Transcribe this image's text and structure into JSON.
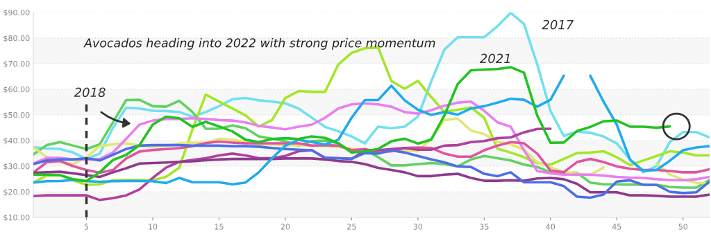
{
  "chart_data": {
    "type": "line",
    "title": "Avocados heading into 2022 with strong price momentum",
    "x": [
      1,
      2,
      3,
      4,
      5,
      6,
      7,
      8,
      9,
      10,
      11,
      12,
      13,
      14,
      15,
      16,
      17,
      18,
      19,
      20,
      21,
      22,
      23,
      24,
      25,
      26,
      27,
      28,
      29,
      30,
      31,
      32,
      33,
      34,
      35,
      36,
      37,
      38,
      39,
      40,
      41,
      42,
      43,
      44,
      45,
      46,
      47,
      48,
      49,
      50,
      51,
      52
    ],
    "series": [
      {
        "color": "#72e0ee",
        "values": [
          37.4,
          36.9,
          36.7,
          35.3,
          32.8,
          34.9,
          45,
          52.8,
          52.5,
          51.6,
          51.5,
          51.1,
          49.3,
          51.1,
          53.4,
          56.1,
          56.6,
          55.7,
          55.2,
          54.5,
          52.5,
          48.9,
          45.3,
          43.6,
          41.6,
          38.9,
          45.4,
          44.8,
          45.4,
          49.3,
          63,
          75.5,
          80.3,
          80.3,
          80.3,
          84.6,
          89.8,
          85.5,
          69.7,
          51.6,
          41.8,
          43.5,
          43,
          41.6,
          38.9,
          32.6,
          27.6,
          30,
          39.4,
          43.3,
          43.3,
          41.2
        ]
      },
      {
        "color": "#a5e62a",
        "values": [
          23.6,
          26.3,
          26.5,
          24.5,
          22.7,
          22.9,
          24.5,
          24.6,
          24.6,
          24.5,
          25.8,
          29.4,
          44.4,
          57.9,
          55.2,
          52.5,
          49.8,
          45.4,
          48,
          56.6,
          59.3,
          59,
          59,
          69.7,
          74.2,
          76,
          76.3,
          63.2,
          60.2,
          63.3,
          57,
          51.1,
          52,
          52.9,
          48.9,
          36.8,
          35.3,
          33.5,
          31.2,
          30.6,
          32.8,
          35.1,
          35.3,
          35.8,
          33.5,
          30.4,
          32.2,
          34,
          35.8,
          35.3,
          34.2,
          34.2
        ]
      },
      {
        "color": "#62d262",
        "values": [
          34.6,
          38.2,
          39.4,
          38,
          36.7,
          38.5,
          47.1,
          55.8,
          55.9,
          53.4,
          53.2,
          55.5,
          51.1,
          44.6,
          44.6,
          45.9,
          44.8,
          41.6,
          40.7,
          39.7,
          38,
          39.8,
          40,
          38.9,
          35.8,
          36.4,
          33.5,
          30.3,
          30.3,
          30.8,
          31.2,
          30.8,
          29.9,
          32.6,
          34,
          33.1,
          32.2,
          30.6,
          29.7,
          27.6,
          27.4,
          27.4,
          23.6,
          22.9,
          22.9,
          22.8,
          22.8,
          22.7,
          21.9,
          21.6,
          21.6,
          24.6
        ]
      },
      {
        "color": "#dfe870",
        "values": [
          37.4,
          33.5,
          31.7,
          30.8,
          33.5,
          37.8,
          38.5,
          38.9,
          38,
          37.6,
          38,
          38.8,
          39.1,
          39.1,
          40.7,
          40.3,
          39.4,
          38.5,
          38.5,
          38.2,
          38.2,
          38,
          37.8,
          37.6,
          36.7,
          36.4,
          36.2,
          36.4,
          36.2,
          35.8,
          40.7,
          48,
          48.6,
          43.9,
          42.5,
          39.5,
          38.5,
          36.5,
          31.5,
          29.5,
          27.8,
          27,
          26.5,
          29.5,
          null,
          null,
          null,
          31,
          26.8,
          24.7,
          23.5,
          23.2
        ]
      },
      {
        "color": "#ea7ff0",
        "values": [
          31,
          33.2,
          33.2,
          32.6,
          32.6,
          32.8,
          35.3,
          40.7,
          46.2,
          47.8,
          48.4,
          48.4,
          48.7,
          48.4,
          48,
          47.8,
          47.1,
          45.7,
          45.1,
          44.4,
          45.4,
          46.2,
          48.9,
          52.5,
          54.1,
          54.5,
          54.1,
          53.2,
          51.1,
          50.5,
          51.8,
          53.6,
          54.8,
          55.2,
          51.6,
          47.1,
          45.4,
          36.2,
          28.1,
          27.2,
          26.7,
          26.7,
          26.7,
          26.3,
          25.8,
          25.5,
          25.4,
          24.9,
          24.6,
          24.5,
          24.9,
          25.8
        ]
      },
      {
        "color": "#e0559f",
        "values": [
          27.5,
          31.5,
          32,
          30,
          28.5,
          27.4,
          28.5,
          33,
          35.7,
          36.3,
          36.7,
          37,
          37.8,
          39,
          39.6,
          39.2,
          38.9,
          38.9,
          38.9,
          38.9,
          38.9,
          38,
          38.2,
          38,
          36.2,
          36.7,
          35.3,
          35.8,
          37.1,
          37.3,
          37.1,
          34.9,
          33.7,
          33.7,
          36.2,
          38,
          39.4,
          38.9,
          34.9,
          28.3,
          27.6,
          31.6,
          32.8,
          31.6,
          29.9,
          29,
          28.5,
          28.5,
          28.1,
          27.6,
          27.6,
          28.8
        ]
      },
      {
        "color": "#b0409f",
        "values": [
          18.3,
          18.6,
          18.6,
          18.6,
          18.6,
          16.8,
          17.5,
          18.6,
          20.9,
          25.4,
          29.4,
          31.7,
          32.4,
          33.1,
          34.2,
          34.9,
          34.2,
          33.1,
          33.1,
          34,
          35.8,
          36.2,
          33.1,
          33.1,
          32.8,
          36.2,
          36.2,
          36.7,
          37.1,
          36.4,
          36.4,
          38,
          38.2,
          39.4,
          39.8,
          40.9,
          41.2,
          43.2,
          44.5,
          44.6,
          null,
          null,
          null,
          null,
          null,
          null,
          null,
          null,
          null,
          null,
          null,
          null
        ]
      },
      {
        "color": "#8e3a8e",
        "values": [
          27.4,
          27.6,
          27.8,
          27.2,
          26.5,
          25.8,
          27.6,
          29.2,
          31,
          31.2,
          31.4,
          31.7,
          31.9,
          32.3,
          32.6,
          32.8,
          32.8,
          32.8,
          32.8,
          33,
          33,
          33,
          32.6,
          32,
          31.7,
          30.8,
          29.3,
          28.5,
          27.6,
          26.1,
          26.1,
          26.7,
          27,
          25.4,
          24.3,
          24.3,
          24.5,
          24.3,
          25.2,
          25.4,
          24.9,
          23.1,
          19.8,
          19.8,
          19.8,
          18.6,
          18.6,
          18.4,
          18.1,
          18.1,
          18.1,
          18.9
        ]
      },
      {
        "color": "#4c6fe6",
        "values": [
          30.8,
          32.2,
          32.6,
          32.6,
          33.1,
          32.2,
          34.4,
          36.7,
          38,
          38.2,
          38.2,
          38.2,
          38,
          38,
          38,
          37.8,
          37.8,
          37.6,
          37.1,
          36.7,
          36.4,
          36.2,
          33.3,
          33.1,
          32.9,
          35.1,
          34.9,
          36.2,
          35.3,
          34,
          32.6,
          31.5,
          29.9,
          29.7,
          27,
          26.1,
          27.6,
          23.7,
          23.7,
          23.7,
          22.2,
          18.1,
          17.7,
          18.9,
          24,
          24.5,
          22.7,
          22.7,
          20,
          19.5,
          19.8,
          24
        ]
      },
      {
        "color": "#22aaee",
        "values": [
          23.6,
          24.1,
          24.2,
          24.6,
          24.1,
          23.9,
          24.1,
          24.2,
          24.2,
          24.1,
          23.4,
          25.4,
          23.7,
          23.7,
          23.7,
          22.9,
          23.6,
          27.6,
          33.1,
          38,
          40.3,
          39.4,
          38.5,
          40.3,
          48.9,
          55.8,
          55.8,
          61.4,
          55.7,
          52,
          50,
          51.1,
          50.1,
          52.5,
          53.4,
          54.8,
          56.3,
          55.9,
          53.2,
          55.9,
          65.3,
          null,
          65.3,
          55.2,
          46.2,
          32.5,
          28.2,
          28.5,
          32.1,
          36.2,
          37.3,
          37.8
        ]
      },
      {
        "color": "#22c322",
        "values": [
          26.7,
          26.7,
          26.5,
          24.9,
          24.2,
          27.6,
          32.4,
          34.4,
          38.2,
          46.2,
          49.3,
          48.7,
          45.3,
          47.3,
          45.5,
          43.6,
          40.3,
          39.4,
          40.6,
          40.9,
          40.6,
          41.6,
          41,
          38.9,
          35.3,
          35.8,
          36.7,
          39.7,
          40.7,
          38.8,
          40.3,
          49.8,
          62,
          67.4,
          67.7,
          67.9,
          68.6,
          66.5,
          49.8,
          39.1,
          39.2,
          43.7,
          45.3,
          47.5,
          47.8,
          45.4,
          45.4,
          45,
          45.5,
          null,
          null,
          null
        ]
      }
    ],
    "annotations": [
      "2017",
      "2021",
      "2018"
    ],
    "ref_lines": [
      {
        "axis": "x",
        "value": 5,
        "color": "#333333",
        "line_style": "dashed"
      }
    ],
    "bands": [
      {
        "axis": "y",
        "from": 10,
        "to": 20,
        "color": "#f7f7f7"
      },
      {
        "axis": "y",
        "from": 30,
        "to": 40,
        "color": "#f7f7f7"
      },
      {
        "axis": "y",
        "from": 50,
        "to": 60,
        "color": "#f7f7f7"
      },
      {
        "axis": "y",
        "from": 70,
        "to": 80,
        "color": "#f7f7f7"
      }
    ],
    "xlim": [
      1,
      52
    ],
    "xticks": [
      5,
      10,
      15,
      20,
      25,
      30,
      35,
      40,
      45,
      50
    ],
    "ylim": [
      10,
      90
    ],
    "yticks": [
      {
        "value": 10,
        "label": "$10.00"
      },
      {
        "value": 20,
        "label": "$20.00"
      },
      {
        "value": 30,
        "label": "$30.00"
      },
      {
        "value": 40,
        "label": "$40.00"
      },
      {
        "value": 50,
        "label": "$50.00"
      },
      {
        "value": 60,
        "label": "$60.00"
      },
      {
        "value": 70,
        "label": "$70.00"
      },
      {
        "value": 80,
        "label": "$80.00"
      },
      {
        "value": 90,
        "label": "$90.00"
      }
    ],
    "grid": "y",
    "line_style": "solid",
    "marker": "none"
  }
}
